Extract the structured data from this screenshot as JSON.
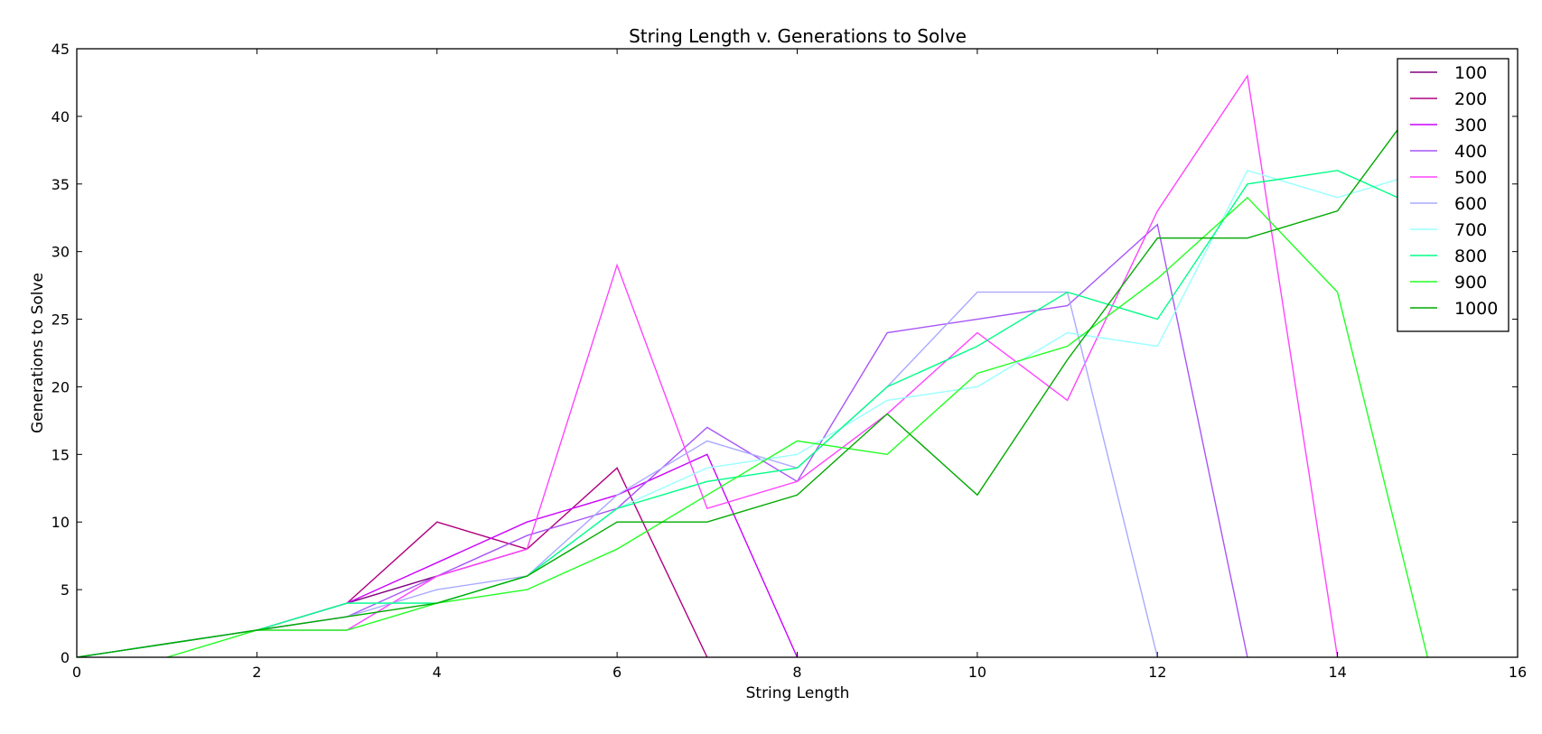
{
  "chart_data": {
    "type": "line",
    "title": "String Length v. Generations to Solve",
    "xlabel": "String Length",
    "ylabel": "Generations to Solve",
    "xlim": [
      0,
      16
    ],
    "ylim": [
      0,
      45
    ],
    "xticks": [
      "0",
      "2",
      "4",
      "6",
      "8",
      "10",
      "12",
      "14",
      "16"
    ],
    "yticks": [
      "0",
      "5",
      "10",
      "15",
      "20",
      "25",
      "30",
      "35",
      "40",
      "45"
    ],
    "grid": false,
    "legend_position": "top-right",
    "series": [
      {
        "name": "100",
        "color": "#800080",
        "x": [
          0,
          1,
          2,
          3,
          4,
          5
        ],
        "y": [
          0,
          1,
          2,
          4,
          6,
          8
        ]
      },
      {
        "name": "200",
        "color": "#b00080",
        "x": [
          0,
          1,
          2,
          3,
          4,
          5,
          6,
          7
        ],
        "y": [
          0,
          1,
          2,
          4,
          10,
          8,
          14,
          0
        ]
      },
      {
        "name": "300",
        "color": "#cc00ff",
        "x": [
          0,
          1,
          2,
          3,
          4,
          5,
          6,
          7,
          8
        ],
        "y": [
          0,
          1,
          2,
          4,
          7,
          10,
          12,
          15,
          0
        ]
      },
      {
        "name": "400",
        "color": "#a855f7",
        "x": [
          0,
          1,
          2,
          3,
          4,
          5,
          6,
          7,
          8,
          9,
          10,
          11,
          12,
          13
        ],
        "y": [
          0,
          1,
          2,
          3,
          6,
          9,
          11,
          17,
          13,
          24,
          25,
          26,
          32,
          0
        ]
      },
      {
        "name": "500",
        "color": "#ff44ff",
        "x": [
          0,
          1,
          2,
          3,
          4,
          5,
          6,
          7,
          8,
          9,
          10,
          11,
          12,
          13,
          14
        ],
        "y": [
          0,
          1,
          2,
          2,
          6,
          8,
          29,
          11,
          13,
          18,
          24,
          19,
          33,
          43,
          0
        ]
      },
      {
        "name": "600",
        "color": "#aaaaff",
        "x": [
          0,
          1,
          2,
          3,
          4,
          5,
          6,
          7,
          8,
          9,
          10,
          11,
          12
        ],
        "y": [
          0,
          1,
          2,
          3,
          5,
          6,
          12,
          16,
          14,
          20,
          27,
          27,
          0
        ]
      },
      {
        "name": "700",
        "color": "#99ffff",
        "x": [
          0,
          1,
          2,
          3,
          4,
          5,
          6,
          7,
          8,
          9,
          10,
          11,
          12,
          13,
          14,
          15
        ],
        "y": [
          0,
          1,
          2,
          4,
          4,
          6,
          11,
          14,
          15,
          19,
          20,
          24,
          23,
          36,
          34,
          36
        ]
      },
      {
        "name": "800",
        "color": "#00ff88",
        "x": [
          0,
          1,
          2,
          3,
          4,
          5,
          6,
          7,
          8,
          9,
          10,
          11,
          12,
          13,
          14,
          15
        ],
        "y": [
          0,
          1,
          2,
          4,
          4,
          6,
          11,
          13,
          14,
          20,
          23,
          27,
          25,
          35,
          36,
          33
        ]
      },
      {
        "name": "900",
        "color": "#22ff22",
        "x": [
          1,
          2,
          3,
          4,
          5,
          6,
          7,
          8,
          9,
          10,
          11,
          12,
          13,
          14,
          15
        ],
        "y": [
          0,
          2,
          2,
          4,
          5,
          8,
          12,
          16,
          15,
          21,
          23,
          28,
          34,
          27,
          0
        ]
      },
      {
        "name": "1000",
        "color": "#00aa00",
        "x": [
          0,
          1,
          2,
          3,
          4,
          5,
          6,
          7,
          8,
          9,
          10,
          11,
          12,
          13,
          14,
          15
        ],
        "y": [
          0,
          1,
          2,
          3,
          4,
          6,
          10,
          10,
          12,
          18,
          12,
          22,
          31,
          31,
          33,
          42
        ]
      }
    ]
  }
}
